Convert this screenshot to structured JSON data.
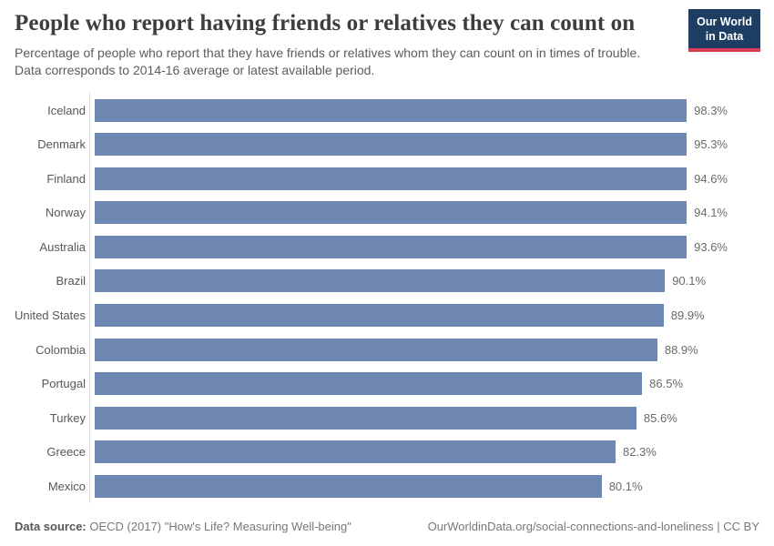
{
  "header": {
    "title": "People who report having friends or relatives they can count on",
    "subtitle": "Percentage of people who report that they have friends or relatives whom they can count on in times of trouble. Data corresponds to 2014-16 average or latest available period.",
    "logo": {
      "line1": "Our World",
      "line2": "in Data"
    }
  },
  "chart_data": {
    "type": "bar",
    "orientation": "horizontal",
    "title": "People who report having friends or relatives they can count on",
    "categories": [
      "Iceland",
      "Denmark",
      "Finland",
      "Norway",
      "Australia",
      "Brazil",
      "United States",
      "Colombia",
      "Portugal",
      "Turkey",
      "Greece",
      "Mexico"
    ],
    "values": [
      98.3,
      95.3,
      94.6,
      94.1,
      93.6,
      90.1,
      89.9,
      88.9,
      86.5,
      85.6,
      82.3,
      80.1
    ],
    "value_labels": [
      "98.3%",
      "95.3%",
      "94.6%",
      "94.1%",
      "93.6%",
      "90.1%",
      "89.9%",
      "88.9%",
      "86.5%",
      "85.6%",
      "82.3%",
      "80.1%"
    ],
    "xlabel": "",
    "ylabel": "",
    "xlim": [
      0,
      100
    ],
    "grid": false,
    "legend": "none",
    "bar_color": "#6e87b2"
  },
  "footer": {
    "datasource_label": "Data source:",
    "datasource_text": "OECD (2017) \"How's Life? Measuring Well-being\"",
    "link_text": "OurWorldinData.org/social-connections-and-loneliness | CC BY"
  },
  "colors": {
    "bar": "#6e87b2",
    "axis_line": "#dcdfe3",
    "title_text": "#3d3d3d",
    "subtitle_text": "#5b5b5b",
    "label_text": "#55575c",
    "value_text": "#6a6a6a",
    "logo_bg": "#1d3d63",
    "logo_stripe": "#d73c50"
  }
}
